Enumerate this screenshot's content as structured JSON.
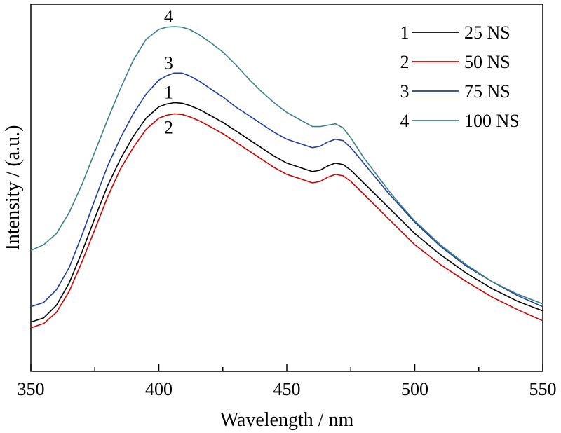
{
  "chart_data": {
    "type": "line",
    "xlabel": "Wavelength / nm",
    "ylabel": "Intensity / (a.u.)",
    "xlim": [
      350,
      550
    ],
    "ylim": [
      0,
      1.15
    ],
    "x_ticks": [
      "350",
      "400",
      "450",
      "500",
      "550"
    ],
    "legend_position": "top-right",
    "series": [
      {
        "name": "25 NS",
        "number": "1",
        "color": "#000000",
        "x": [
          350,
          355,
          360,
          365,
          370,
          375,
          380,
          385,
          390,
          395,
          400,
          403,
          406,
          409,
          412,
          416,
          420,
          425,
          430,
          435,
          440,
          445,
          450,
          455,
          460,
          463,
          466,
          469,
          472,
          475,
          480,
          485,
          490,
          495,
          500,
          510,
          520,
          530,
          540,
          550
        ],
        "y": [
          0.1,
          0.115,
          0.16,
          0.24,
          0.35,
          0.47,
          0.585,
          0.68,
          0.76,
          0.825,
          0.865,
          0.875,
          0.88,
          0.878,
          0.87,
          0.855,
          0.835,
          0.81,
          0.78,
          0.75,
          0.72,
          0.69,
          0.665,
          0.65,
          0.635,
          0.64,
          0.655,
          0.665,
          0.66,
          0.64,
          0.595,
          0.55,
          0.505,
          0.46,
          0.415,
          0.34,
          0.275,
          0.22,
          0.175,
          0.14
        ]
      },
      {
        "name": "50 NS",
        "number": "2",
        "color": "#cc0000",
        "x": [
          350,
          355,
          360,
          365,
          370,
          375,
          380,
          385,
          390,
          395,
          400,
          403,
          406,
          409,
          412,
          416,
          420,
          425,
          430,
          435,
          440,
          445,
          450,
          455,
          460,
          463,
          466,
          469,
          472,
          475,
          480,
          485,
          490,
          495,
          500,
          510,
          520,
          530,
          540,
          550
        ],
        "y": [
          0.08,
          0.095,
          0.135,
          0.21,
          0.315,
          0.43,
          0.545,
          0.645,
          0.72,
          0.785,
          0.825,
          0.835,
          0.84,
          0.838,
          0.83,
          0.815,
          0.795,
          0.77,
          0.74,
          0.71,
          0.68,
          0.65,
          0.625,
          0.61,
          0.595,
          0.6,
          0.615,
          0.625,
          0.62,
          0.6,
          0.555,
          0.51,
          0.465,
          0.42,
          0.375,
          0.305,
          0.245,
          0.19,
          0.145,
          0.105
        ]
      },
      {
        "name": "75 NS",
        "number": "3",
        "color": "#1f3d99",
        "x": [
          350,
          355,
          360,
          365,
          370,
          375,
          380,
          385,
          390,
          395,
          400,
          403,
          406,
          409,
          412,
          416,
          420,
          425,
          430,
          435,
          440,
          445,
          450,
          455,
          460,
          463,
          466,
          469,
          472,
          475,
          480,
          485,
          490,
          495,
          500,
          510,
          520,
          530,
          540,
          550
        ],
        "y": [
          0.155,
          0.17,
          0.215,
          0.295,
          0.41,
          0.535,
          0.655,
          0.755,
          0.84,
          0.91,
          0.96,
          0.975,
          0.985,
          0.985,
          0.975,
          0.955,
          0.93,
          0.9,
          0.865,
          0.835,
          0.805,
          0.775,
          0.75,
          0.735,
          0.72,
          0.725,
          0.74,
          0.75,
          0.745,
          0.72,
          0.665,
          0.61,
          0.555,
          0.505,
          0.455,
          0.37,
          0.3,
          0.245,
          0.195,
          0.155
        ]
      },
      {
        "name": "100 NS",
        "number": "4",
        "color": "#3d8080",
        "x": [
          350,
          355,
          360,
          365,
          370,
          375,
          380,
          385,
          390,
          395,
          400,
          403,
          406,
          409,
          412,
          416,
          420,
          425,
          430,
          435,
          440,
          445,
          450,
          455,
          460,
          463,
          466,
          469,
          472,
          475,
          480,
          485,
          490,
          495,
          500,
          510,
          520,
          530,
          540,
          550
        ],
        "y": [
          0.355,
          0.375,
          0.415,
          0.49,
          0.59,
          0.705,
          0.82,
          0.93,
          1.03,
          1.105,
          1.14,
          1.148,
          1.15,
          1.148,
          1.14,
          1.12,
          1.095,
          1.06,
          1.015,
          0.965,
          0.92,
          0.88,
          0.845,
          0.82,
          0.795,
          0.795,
          0.8,
          0.805,
          0.79,
          0.755,
          0.685,
          0.625,
          0.565,
          0.51,
          0.46,
          0.375,
          0.305,
          0.245,
          0.2,
          0.165
        ]
      }
    ]
  }
}
